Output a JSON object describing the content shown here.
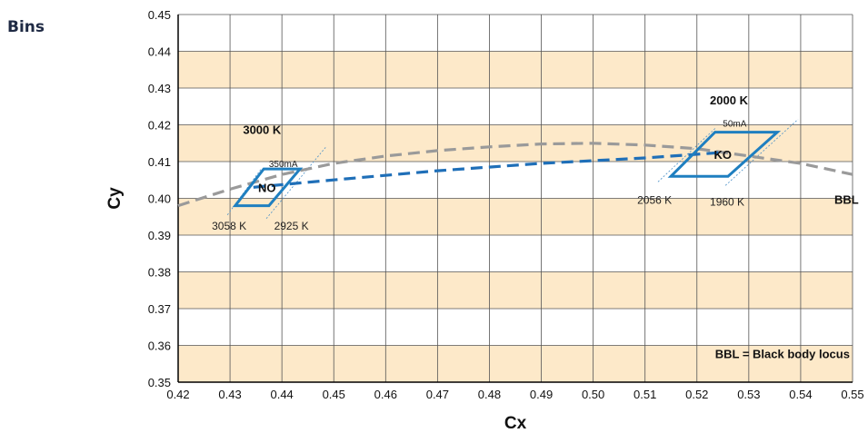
{
  "heading": "Bins",
  "chart_data": {
    "type": "line",
    "xlabel": "Cx",
    "ylabel": "Cy",
    "xlim": [
      0.42,
      0.55
    ],
    "ylim": [
      0.35,
      0.45
    ],
    "x_ticks": [
      "0.42",
      "0.43",
      "0.44",
      "0.45",
      "0.46",
      "0.47",
      "0.48",
      "0.49",
      "0.50",
      "0.51",
      "0.52",
      "0.53",
      "0.54",
      "0.55"
    ],
    "y_ticks": [
      "0.35",
      "0.36",
      "0.37",
      "0.38",
      "0.39",
      "0.40",
      "0.41",
      "0.42",
      "0.43",
      "0.44",
      "0.45"
    ],
    "grid": true,
    "band_color": "#fde9c9",
    "series": [
      {
        "name": "BBL",
        "color": "#9a9a9a",
        "style": "dashed",
        "points": [
          [
            0.42,
            0.398
          ],
          [
            0.43,
            0.4025
          ],
          [
            0.44,
            0.4065
          ],
          [
            0.45,
            0.4095
          ],
          [
            0.46,
            0.4115
          ],
          [
            0.47,
            0.413
          ],
          [
            0.48,
            0.414
          ],
          [
            0.49,
            0.4148
          ],
          [
            0.5,
            0.415
          ],
          [
            0.51,
            0.4145
          ],
          [
            0.52,
            0.4135
          ],
          [
            0.53,
            0.4115
          ],
          [
            0.54,
            0.4095
          ],
          [
            0.55,
            0.4065
          ]
        ]
      },
      {
        "name": "",
        "color": "#1f6fb8",
        "style": "dashed",
        "points": [
          [
            0.4345,
            0.403
          ],
          [
            0.45,
            0.405
          ],
          [
            0.47,
            0.4075
          ],
          [
            0.49,
            0.4095
          ],
          [
            0.51,
            0.411
          ],
          [
            0.525,
            0.4125
          ]
        ]
      }
    ],
    "bins": [
      {
        "label": "NO",
        "color": "#1f7fc0",
        "corners": [
          [
            0.431,
            0.398
          ],
          [
            0.4365,
            0.408
          ],
          [
            0.4435,
            0.408
          ],
          [
            0.4375,
            0.398
          ]
        ]
      },
      {
        "label": "KO",
        "color": "#1f7fc0",
        "corners": [
          [
            0.515,
            0.406
          ],
          [
            0.5235,
            0.418
          ],
          [
            0.5355,
            0.418
          ],
          [
            0.526,
            0.406
          ]
        ]
      }
    ],
    "iso_lines": [
      {
        "from": [
          0.4295,
          0.3955
        ],
        "to": [
          0.436,
          0.408
        ]
      },
      {
        "from": [
          0.437,
          0.3945
        ],
        "to": [
          0.4485,
          0.414
        ]
      },
      {
        "from": [
          0.5125,
          0.4045
        ],
        "to": [
          0.5235,
          0.419
        ]
      },
      {
        "from": [
          0.5255,
          0.4035
        ],
        "to": [
          0.5395,
          0.4215
        ]
      }
    ],
    "annotations": [
      {
        "id": "temp-3000",
        "text": "3000 K",
        "x": 0.4325,
        "y": 0.4175,
        "style": "bold"
      },
      {
        "id": "current-350",
        "text": "350mA",
        "x": 0.4375,
        "y": 0.4085,
        "style": "tiny"
      },
      {
        "id": "temp-3058",
        "text": "3058 K",
        "x": 0.4265,
        "y": 0.3915,
        "style": "small"
      },
      {
        "id": "temp-2925",
        "text": "2925 K",
        "x": 0.4385,
        "y": 0.3915,
        "style": "small"
      },
      {
        "id": "temp-2000",
        "text": "2000 K",
        "x": 0.5225,
        "y": 0.4255,
        "style": "bold"
      },
      {
        "id": "current-50",
        "text": "50mA",
        "x": 0.525,
        "y": 0.4195,
        "style": "tiny"
      },
      {
        "id": "temp-2056",
        "text": "2056 K",
        "x": 0.5085,
        "y": 0.3985,
        "style": "small"
      },
      {
        "id": "temp-1960",
        "text": "1960 K",
        "x": 0.5225,
        "y": 0.398,
        "style": "small"
      },
      {
        "id": "bbl-label",
        "text": "BBL",
        "x": 0.5465,
        "y": 0.3985,
        "style": "bbl"
      },
      {
        "id": "bbl-legend",
        "text": "BBL = Black body locus",
        "x": 0.5235,
        "y": 0.3565,
        "style": "bold"
      }
    ]
  }
}
